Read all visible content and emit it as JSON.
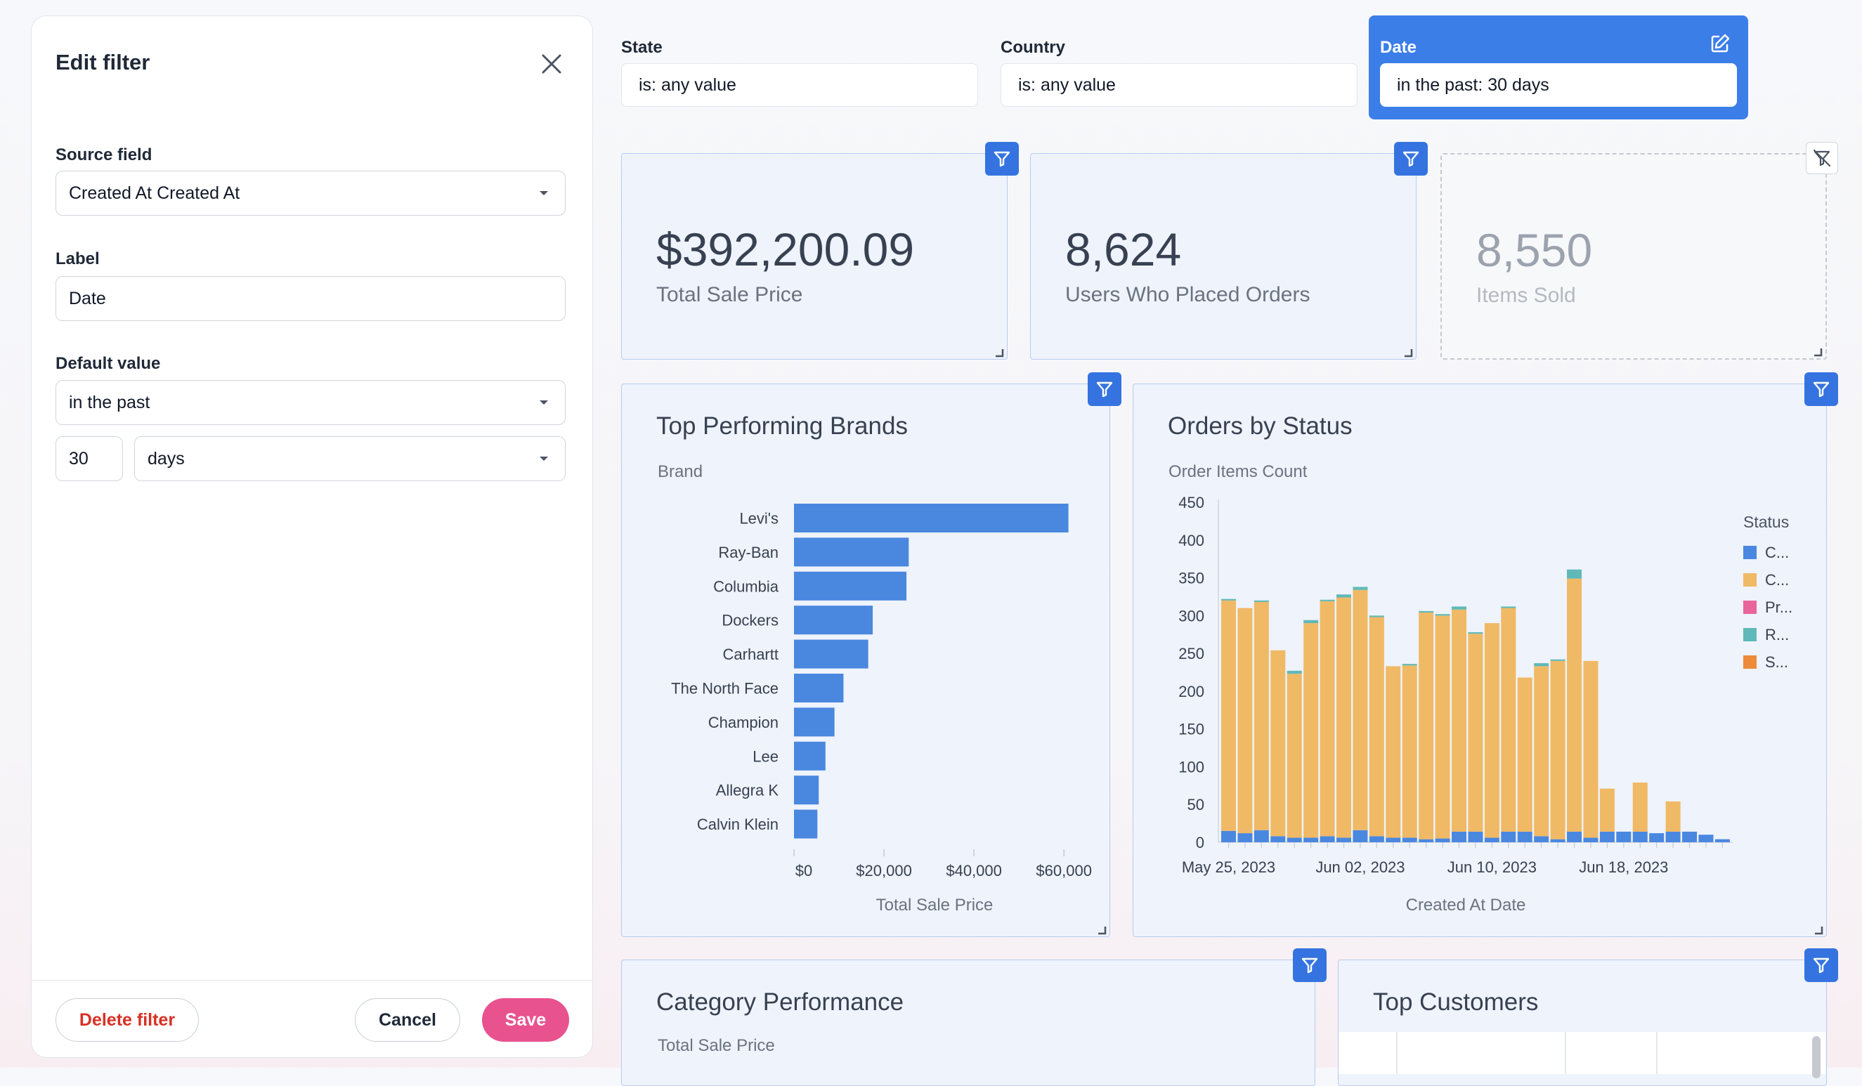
{
  "panel": {
    "title": "Edit filter",
    "source_field_label": "Source field",
    "source_field_value": "Created At Created At",
    "label_label": "Label",
    "label_value": "Date",
    "default_value_label": "Default value",
    "default_operator": "in the past",
    "default_amount": "30",
    "default_unit": "days",
    "delete_label": "Delete filter",
    "cancel_label": "Cancel",
    "save_label": "Save"
  },
  "filters": [
    {
      "title": "State",
      "value": "is: any value"
    },
    {
      "title": "Country",
      "value": "is: any value"
    },
    {
      "title": "Date",
      "value": "in the past: 30 days"
    }
  ],
  "kpis": [
    {
      "value": "$392,200.09",
      "label": "Total Sale Price"
    },
    {
      "value": "8,624",
      "label": "Users Who Placed Orders"
    },
    {
      "value": "8,550",
      "label": "Items Sold"
    }
  ],
  "brands_chart": {
    "title": "Top Performing Brands",
    "y_label": "Brand",
    "x_label": "Total Sale Price"
  },
  "status_chart": {
    "title": "Orders by Status",
    "y_label": "Order Items Count",
    "x_label": "Created At Date",
    "legend_title": "Status"
  },
  "bottom_cards": {
    "category_title": "Category Performance",
    "category_subtitle": "Total Sale Price",
    "customers_title": "Top Customers"
  },
  "colors": {
    "accent": "#3574e0",
    "bar_blue": "#4a88e0",
    "save_pink": "#e8528f",
    "delete_red": "#d93025"
  },
  "chart_data": [
    {
      "type": "bar",
      "orientation": "horizontal",
      "title": "Top Performing Brands",
      "ylabel": "Brand",
      "xlabel": "Total Sale Price",
      "categories": [
        "Levi's",
        "Ray-Ban",
        "Columbia",
        "Dockers",
        "Carhartt",
        "The North Face",
        "Champion",
        "Lee",
        "Allegra K",
        "Calvin Klein"
      ],
      "values": [
        61000,
        25500,
        25000,
        17500,
        16500,
        11000,
        9000,
        7000,
        5500,
        5200
      ],
      "xticks": [
        "$0",
        "$20,000",
        "$40,000",
        "$60,000"
      ],
      "xtick_values": [
        0,
        20000,
        40000,
        60000
      ],
      "xlim": [
        0,
        62000
      ],
      "color": "#4a88e0"
    },
    {
      "type": "bar",
      "stacked": true,
      "title": "Orders by Status",
      "ylabel": "Order Items Count",
      "xlabel": "Created At Date",
      "ylim": [
        0,
        450
      ],
      "yticks": [
        0,
        50,
        100,
        150,
        200,
        250,
        300,
        350,
        400,
        450
      ],
      "xtick_labels": [
        "May 25, 2023",
        "Jun 02, 2023",
        "Jun 10, 2023",
        "Jun 18, 2023"
      ],
      "xtick_index": [
        0,
        8,
        16,
        24
      ],
      "legend_title": "Status",
      "legend_position": "right",
      "categories": [
        "May 25",
        "May 26",
        "May 27",
        "May 28",
        "May 29",
        "May 30",
        "May 31",
        "Jun 01",
        "Jun 02",
        "Jun 03",
        "Jun 04",
        "Jun 05",
        "Jun 06",
        "Jun 07",
        "Jun 08",
        "Jun 09",
        "Jun 10",
        "Jun 11",
        "Jun 12",
        "Jun 13",
        "Jun 14",
        "Jun 15",
        "Jun 16",
        "Jun 17",
        "Jun 18",
        "Jun 19",
        "Jun 20",
        "Jun 21",
        "Jun 22",
        "Jun 23",
        "Jun 24"
      ],
      "series": [
        {
          "name": "C...",
          "color": "#4a88e0",
          "values": [
            15,
            12,
            16,
            8,
            6,
            6,
            8,
            6,
            16,
            8,
            6,
            6,
            4,
            5,
            14,
            14,
            6,
            14,
            14,
            8,
            4,
            14,
            6,
            14,
            14,
            14,
            12,
            14,
            14,
            10,
            4
          ]
        },
        {
          "name": "C...",
          "color": "#f0b965",
          "values": [
            305,
            298,
            302,
            246,
            217,
            284,
            311,
            318,
            318,
            290,
            227,
            228,
            300,
            295,
            294,
            262,
            284,
            296,
            204,
            225,
            236,
            335,
            234,
            57,
            0,
            65,
            0,
            40,
            0,
            0,
            0
          ]
        },
        {
          "name": "Pr...",
          "color": "#e8649a",
          "values": [
            0,
            0,
            0,
            0,
            0,
            0,
            0,
            0,
            0,
            0,
            0,
            0,
            0,
            0,
            0,
            0,
            0,
            0,
            0,
            0,
            0,
            0,
            0,
            0,
            0,
            0,
            0,
            0,
            0,
            0,
            0
          ]
        },
        {
          "name": "R...",
          "color": "#5fb9b9",
          "values": [
            2,
            0,
            2,
            0,
            4,
            4,
            2,
            4,
            4,
            2,
            0,
            2,
            2,
            2,
            4,
            2,
            0,
            2,
            0,
            4,
            2,
            12,
            0,
            0,
            0,
            0,
            0,
            0,
            0,
            0,
            0
          ]
        },
        {
          "name": "S...",
          "color": "#ee8b3a",
          "values": [
            0,
            0,
            0,
            0,
            0,
            0,
            0,
            0,
            0,
            0,
            0,
            0,
            0,
            0,
            0,
            0,
            0,
            0,
            0,
            0,
            0,
            0,
            0,
            0,
            0,
            0,
            0,
            0,
            0,
            0,
            0
          ]
        }
      ]
    }
  ]
}
